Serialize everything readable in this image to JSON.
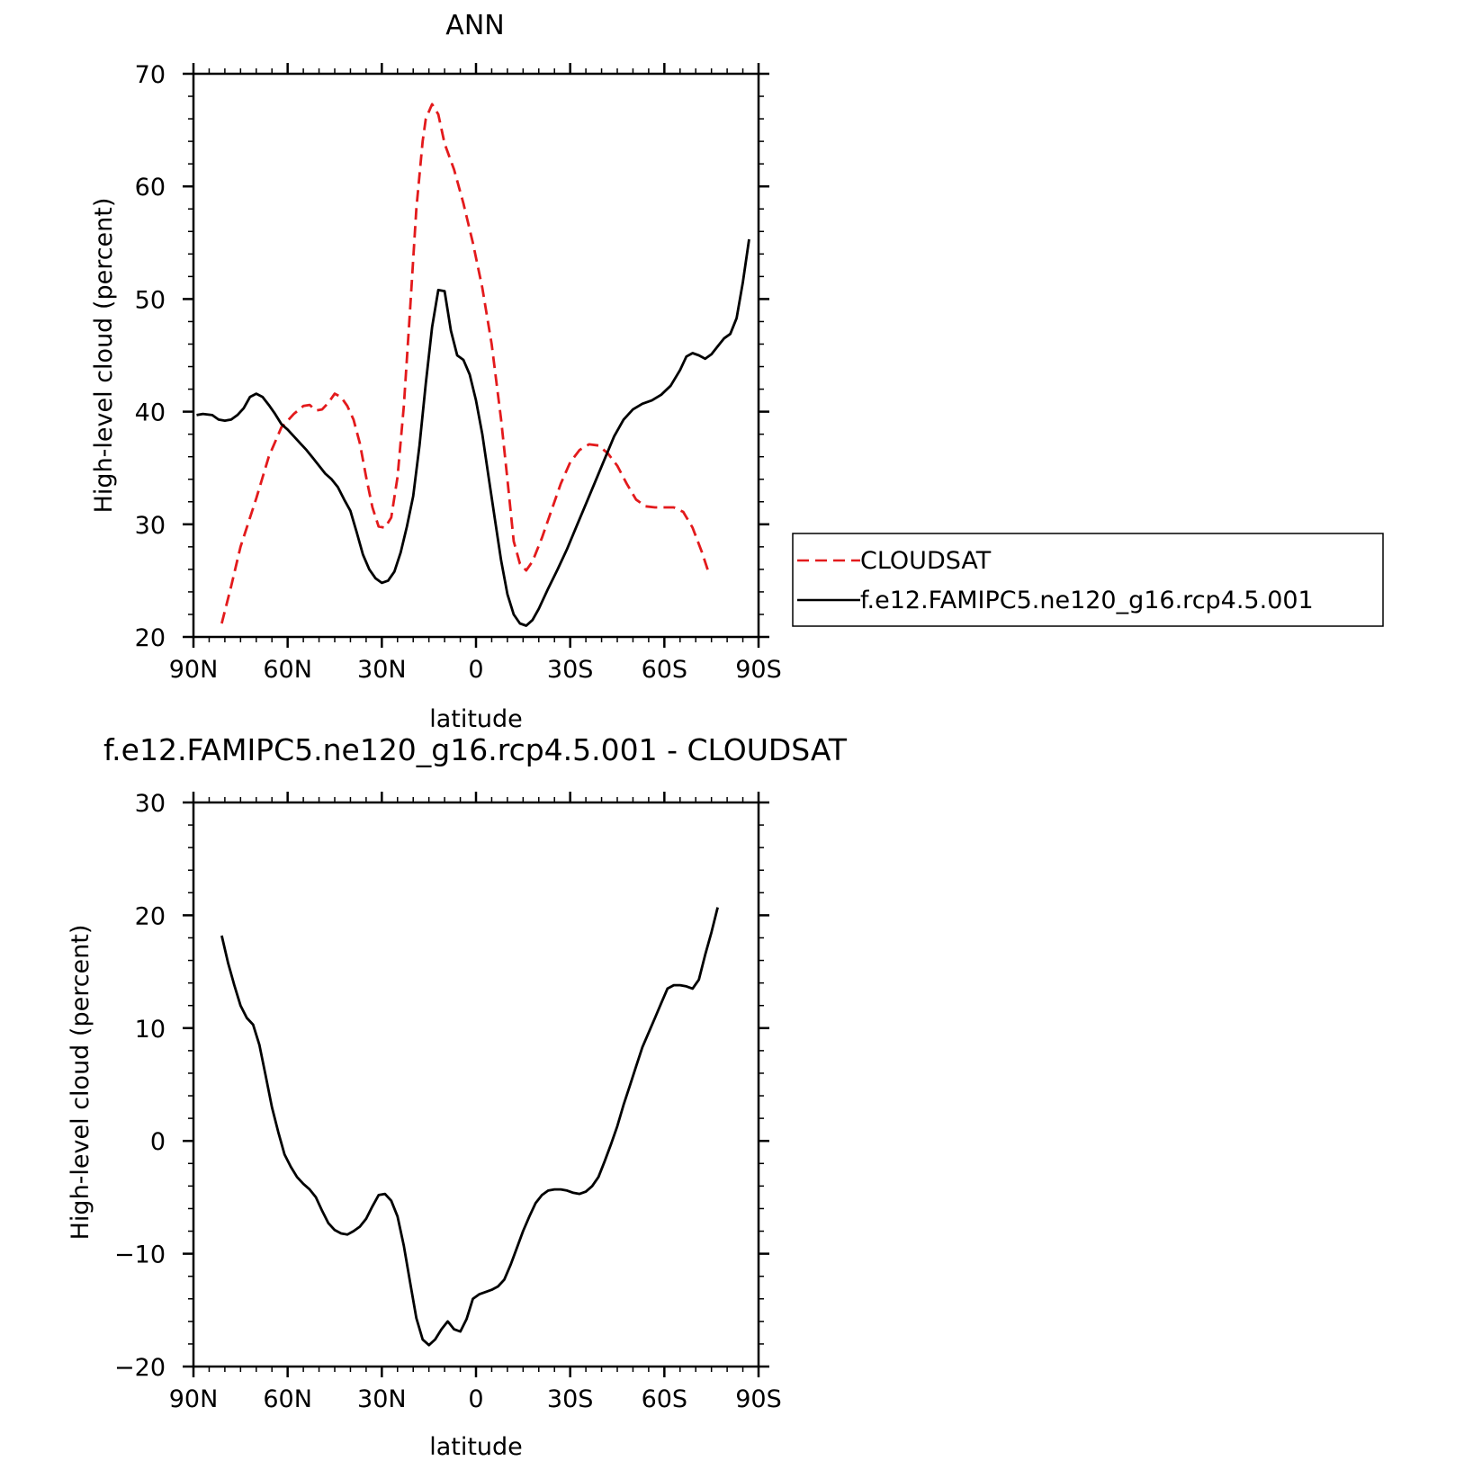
{
  "chart_data": [
    {
      "type": "line",
      "title": "ANN",
      "xlabel": "latitude",
      "ylabel": "High-level cloud (percent)",
      "xlim": [
        -90,
        90
      ],
      "ylim": [
        20,
        70
      ],
      "x_ticks": [
        -90,
        -60,
        -30,
        0,
        30,
        60,
        90
      ],
      "x_tick_labels": [
        "90N",
        "60N",
        "30N",
        "0",
        "30S",
        "60S",
        "90S"
      ],
      "y_ticks": [
        20,
        30,
        40,
        50,
        60,
        70
      ],
      "y_tick_labels": [
        "20",
        "30",
        "40",
        "50",
        "60",
        "70"
      ],
      "grid": false,
      "legend_position": "right",
      "series": [
        {
          "name": "CLOUDSAT",
          "color": "#e31a1c",
          "dash": "dashed",
          "points": [
            [
              -81,
              21.2
            ],
            [
              -78,
              24.5
            ],
            [
              -75,
              28
            ],
            [
              -70,
              32.3
            ],
            [
              -66,
              36
            ],
            [
              -62,
              38.6
            ],
            [
              -58,
              39.8
            ],
            [
              -55,
              40.5
            ],
            [
              -53,
              40.6
            ],
            [
              -51,
              40.1
            ],
            [
              -49,
              40.2
            ],
            [
              -47,
              40.8
            ],
            [
              -45,
              41.6
            ],
            [
              -43,
              41.3
            ],
            [
              -41,
              40.5
            ],
            [
              -39,
              39.3
            ],
            [
              -37,
              37.2
            ],
            [
              -35,
              34.2
            ],
            [
              -33,
              31.5
            ],
            [
              -31,
              29.8
            ],
            [
              -29,
              29.7
            ],
            [
              -27,
              30.6
            ],
            [
              -25,
              34.2
            ],
            [
              -23,
              40.5
            ],
            [
              -21,
              49
            ],
            [
              -19,
              58
            ],
            [
              -17,
              64
            ],
            [
              -16,
              66
            ],
            [
              -14,
              67.3
            ],
            [
              -12,
              66.4
            ],
            [
              -10,
              63.8
            ],
            [
              -7,
              61.5
            ],
            [
              -4,
              58.5
            ],
            [
              -1,
              55
            ],
            [
              2,
              51
            ],
            [
              5,
              46
            ],
            [
              8,
              39.3
            ],
            [
              10,
              34
            ],
            [
              12,
              28.5
            ],
            [
              14,
              26.5
            ],
            [
              16,
              25.9
            ],
            [
              18,
              26.7
            ],
            [
              21,
              28.8
            ],
            [
              24,
              31.2
            ],
            [
              27,
              33.6
            ],
            [
              30,
              35.5
            ],
            [
              33,
              36.6
            ],
            [
              36,
              37.1
            ],
            [
              39,
              37.0
            ],
            [
              42,
              36.3
            ],
            [
              45,
              35.2
            ],
            [
              48,
              33.6
            ],
            [
              51,
              32.2
            ],
            [
              54,
              31.6
            ],
            [
              57,
              31.5
            ],
            [
              60,
              31.5
            ],
            [
              63,
              31.5
            ],
            [
              66,
              31.1
            ],
            [
              69,
              29.7
            ],
            [
              72,
              27.5
            ],
            [
              74,
              25.8
            ]
          ]
        },
        {
          "name": "f.e12.FAMIPC5.ne120_g16.rcp4.5.001",
          "color": "#000000",
          "dash": "solid",
          "points": [
            [
              -89,
              39.7
            ],
            [
              -87,
              39.8
            ],
            [
              -84,
              39.7
            ],
            [
              -82,
              39.3
            ],
            [
              -80,
              39.2
            ],
            [
              -78,
              39.3
            ],
            [
              -76,
              39.7
            ],
            [
              -74,
              40.3
            ],
            [
              -72,
              41.3
            ],
            [
              -70,
              41.6
            ],
            [
              -68,
              41.3
            ],
            [
              -66,
              40.6
            ],
            [
              -64,
              39.8
            ],
            [
              -62,
              38.9
            ],
            [
              -60,
              38.4
            ],
            [
              -58,
              37.8
            ],
            [
              -56,
              37.2
            ],
            [
              -54,
              36.6
            ],
            [
              -52,
              35.9
            ],
            [
              -50,
              35.2
            ],
            [
              -48,
              34.5
            ],
            [
              -46,
              34.0
            ],
            [
              -44,
              33.3
            ],
            [
              -42,
              32.2
            ],
            [
              -40,
              31.2
            ],
            [
              -38,
              29.3
            ],
            [
              -36,
              27.3
            ],
            [
              -34,
              26.0
            ],
            [
              -32,
              25.2
            ],
            [
              -30,
              24.8
            ],
            [
              -28,
              25.0
            ],
            [
              -26,
              25.8
            ],
            [
              -24,
              27.5
            ],
            [
              -22,
              29.8
            ],
            [
              -20,
              32.5
            ],
            [
              -18,
              37.0
            ],
            [
              -16,
              42.5
            ],
            [
              -14,
              47.5
            ],
            [
              -12,
              50.8
            ],
            [
              -10,
              50.7
            ],
            [
              -8,
              47.2
            ],
            [
              -6,
              45.0
            ],
            [
              -4,
              44.6
            ],
            [
              -2,
              43.3
            ],
            [
              0,
              41.0
            ],
            [
              2,
              38.0
            ],
            [
              4,
              34.2
            ],
            [
              6,
              30.5
            ],
            [
              8,
              26.8
            ],
            [
              10,
              23.8
            ],
            [
              12,
              22.0
            ],
            [
              14,
              21.2
            ],
            [
              16,
              21.0
            ],
            [
              18,
              21.5
            ],
            [
              20,
              22.5
            ],
            [
              23,
              24.3
            ],
            [
              26,
              26.0
            ],
            [
              29,
              27.8
            ],
            [
              32,
              29.8
            ],
            [
              35,
              31.8
            ],
            [
              38,
              33.8
            ],
            [
              41,
              35.8
            ],
            [
              44,
              37.8
            ],
            [
              47,
              39.3
            ],
            [
              50,
              40.2
            ],
            [
              53,
              40.7
            ],
            [
              56,
              41.0
            ],
            [
              59,
              41.5
            ],
            [
              62,
              42.3
            ],
            [
              65,
              43.7
            ],
            [
              67,
              44.9
            ],
            [
              69,
              45.2
            ],
            [
              71,
              45.0
            ],
            [
              73,
              44.7
            ],
            [
              75,
              45.1
            ],
            [
              77,
              45.8
            ],
            [
              79,
              46.5
            ],
            [
              81,
              46.9
            ],
            [
              83,
              48.3
            ],
            [
              85,
              51.5
            ],
            [
              87,
              55.3
            ]
          ]
        }
      ]
    },
    {
      "type": "line",
      "title": "f.e12.FAMIPC5.ne120_g16.rcp4.5.001 - CLOUDSAT",
      "xlabel": "latitude",
      "ylabel": "High-level cloud (percent)",
      "xlim": [
        -90,
        90
      ],
      "ylim": [
        -20,
        30
      ],
      "x_ticks": [
        -90,
        -60,
        -30,
        0,
        30,
        60,
        90
      ],
      "x_tick_labels": [
        "90N",
        "60N",
        "30N",
        "0",
        "30S",
        "60S",
        "90S"
      ],
      "y_ticks": [
        -20,
        -10,
        0,
        10,
        20,
        30
      ],
      "y_tick_labels": [
        "−20",
        "−10",
        "0",
        "10",
        "20",
        "30"
      ],
      "grid": false,
      "series": [
        {
          "color": "#000000",
          "dash": "solid",
          "points": [
            [
              -81,
              18.2
            ],
            [
              -79,
              15.8
            ],
            [
              -77,
              13.8
            ],
            [
              -75,
              12.0
            ],
            [
              -73,
              10.9
            ],
            [
              -71,
              10.3
            ],
            [
              -69,
              8.5
            ],
            [
              -67,
              5.8
            ],
            [
              -65,
              3.0
            ],
            [
              -63,
              0.8
            ],
            [
              -61,
              -1.2
            ],
            [
              -59,
              -2.3
            ],
            [
              -57,
              -3.2
            ],
            [
              -55,
              -3.8
            ],
            [
              -53,
              -4.3
            ],
            [
              -51,
              -5.0
            ],
            [
              -49,
              -6.2
            ],
            [
              -47,
              -7.3
            ],
            [
              -45,
              -7.9
            ],
            [
              -43,
              -8.2
            ],
            [
              -41,
              -8.3
            ],
            [
              -39,
              -8.0
            ],
            [
              -37,
              -7.6
            ],
            [
              -35,
              -6.9
            ],
            [
              -33,
              -5.8
            ],
            [
              -31,
              -4.8
            ],
            [
              -29,
              -4.7
            ],
            [
              -27,
              -5.3
            ],
            [
              -25,
              -6.7
            ],
            [
              -23,
              -9.3
            ],
            [
              -21,
              -12.5
            ],
            [
              -19,
              -15.7
            ],
            [
              -17,
              -17.6
            ],
            [
              -15,
              -18.1
            ],
            [
              -13,
              -17.6
            ],
            [
              -11,
              -16.7
            ],
            [
              -9,
              -16.0
            ],
            [
              -7,
              -16.7
            ],
            [
              -5,
              -16.9
            ],
            [
              -3,
              -15.8
            ],
            [
              -1,
              -14.0
            ],
            [
              1,
              -13.6
            ],
            [
              3,
              -13.4
            ],
            [
              5,
              -13.2
            ],
            [
              7,
              -12.9
            ],
            [
              9,
              -12.3
            ],
            [
              11,
              -11.0
            ],
            [
              13,
              -9.5
            ],
            [
              15,
              -8.0
            ],
            [
              17,
              -6.7
            ],
            [
              19,
              -5.5
            ],
            [
              21,
              -4.8
            ],
            [
              23,
              -4.4
            ],
            [
              25,
              -4.3
            ],
            [
              27,
              -4.3
            ],
            [
              29,
              -4.4
            ],
            [
              31,
              -4.6
            ],
            [
              33,
              -4.7
            ],
            [
              35,
              -4.5
            ],
            [
              37,
              -4.0
            ],
            [
              39,
              -3.2
            ],
            [
              41,
              -1.8
            ],
            [
              43,
              -0.3
            ],
            [
              45,
              1.3
            ],
            [
              47,
              3.2
            ],
            [
              49,
              4.9
            ],
            [
              51,
              6.6
            ],
            [
              53,
              8.3
            ],
            [
              55,
              9.6
            ],
            [
              57,
              10.9
            ],
            [
              59,
              12.2
            ],
            [
              61,
              13.5
            ],
            [
              63,
              13.8
            ],
            [
              65,
              13.8
            ],
            [
              67,
              13.7
            ],
            [
              69,
              13.5
            ],
            [
              71,
              14.3
            ],
            [
              73,
              16.5
            ],
            [
              75,
              18.5
            ],
            [
              77,
              20.7
            ]
          ]
        }
      ]
    }
  ]
}
